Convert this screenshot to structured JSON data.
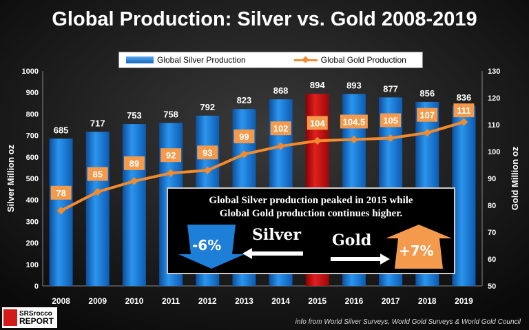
{
  "chart_data": {
    "type": "bar",
    "title": "Global Production: Silver vs. Gold 2008-2019",
    "categories": [
      "2008",
      "2009",
      "2010",
      "2011",
      "2012",
      "2013",
      "2014",
      "2015",
      "2016",
      "2017",
      "2018",
      "2019"
    ],
    "series": [
      {
        "name": "Global Silver Production",
        "type": "bar",
        "axis": "left",
        "color": "#1e88e5",
        "highlight": {
          "category": "2015",
          "color": "#d01818"
        },
        "values": [
          685,
          717,
          753,
          758,
          792,
          823,
          868,
          894,
          893,
          877,
          856,
          836
        ],
        "labels": [
          "685",
          "717",
          "753",
          "758",
          "792",
          "823",
          "868",
          "894",
          "893",
          "877",
          "856",
          "836"
        ]
      },
      {
        "name": "Global Gold Production",
        "type": "line",
        "axis": "right",
        "color": "#f28a2e",
        "values": [
          78,
          85,
          89,
          92,
          93,
          99,
          102,
          104,
          104.5,
          105,
          107,
          111
        ],
        "labels": [
          "78",
          "85",
          "89",
          "92",
          "93",
          "99",
          "102",
          "104",
          "104.5",
          "105",
          "107",
          "111"
        ]
      }
    ],
    "ylabel": "Silver Million oz",
    "ylim": [
      0,
      1000
    ],
    "yticks": [
      "0",
      "100",
      "200",
      "300",
      "400",
      "500",
      "600",
      "700",
      "800",
      "900",
      "1000"
    ],
    "y2label": "Gold  Million oz",
    "y2lim": [
      50,
      130
    ],
    "y2ticks": [
      "50",
      "60",
      "70",
      "80",
      "90",
      "100",
      "110",
      "120",
      "130"
    ],
    "legend_position": "top",
    "grid": false,
    "annotation": {
      "text_line1": "Global Silver production peaked in 2015 while",
      "text_line2": "Global Gold production continues higher.",
      "silver_label": "Silver",
      "silver_change": "-6%",
      "gold_label": "Gold",
      "gold_change": "+7%"
    }
  },
  "logo": {
    "line1": "SRSrocco",
    "line2": "REPORT"
  },
  "source": "info from World Silver Surveys, World Gold Surveys & World Gold Council"
}
